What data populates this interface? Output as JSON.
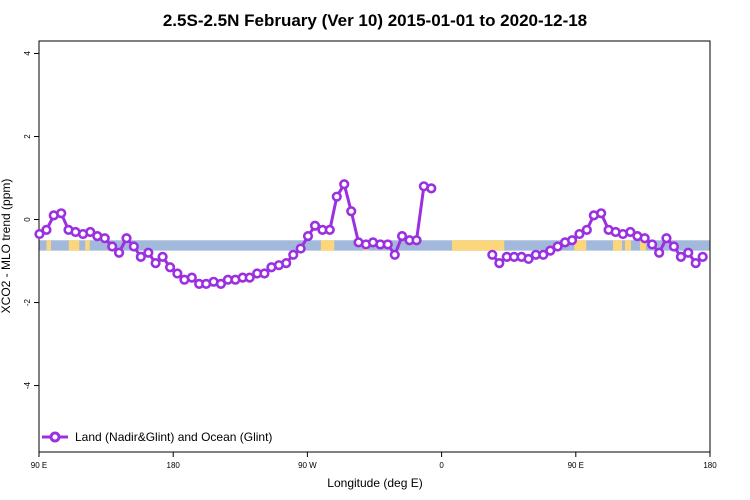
{
  "chart_data": {
    "type": "line",
    "title": "2.5S-2.5N February (Ver 10)   2015-01-01 to 2020-12-18",
    "xlabel": "Longitude (deg E)",
    "ylabel": "XCO2 - MLO trend (ppm)",
    "xlim": [
      90,
      540
    ],
    "ylim": [
      -5.6,
      4.3
    ],
    "x_ticks": [
      {
        "value": 90,
        "label": "90 E"
      },
      {
        "value": 180,
        "label": "180"
      },
      {
        "value": 270,
        "label": "90 W"
      },
      {
        "value": 360,
        "label": "0"
      },
      {
        "value": 450,
        "label": "90 E"
      },
      {
        "value": 540,
        "label": "180"
      }
    ],
    "y_ticks": [
      {
        "value": -4,
        "label": "-4"
      },
      {
        "value": -2,
        "label": "-2"
      },
      {
        "value": 0,
        "label": "0"
      },
      {
        "value": 2,
        "label": "2"
      },
      {
        "value": 4,
        "label": "4"
      }
    ],
    "legend": {
      "position": "bottom-left",
      "label": "Land (Nadir&Glint) and Ocean (Glint)"
    },
    "colors": {
      "series": "#9b30e0",
      "ocean": "#a3b9dc",
      "land": "#fcd67a"
    },
    "surface_band": {
      "y_range": [
        -0.75,
        -0.5
      ],
      "land_segments": [
        [
          95,
          98
        ],
        [
          110,
          117
        ],
        [
          121,
          124
        ],
        [
          279,
          288
        ],
        [
          308,
          311
        ],
        [
          367,
          402
        ],
        [
          449,
          457
        ],
        [
          475,
          481
        ],
        [
          483,
          487
        ],
        [
          493,
          497
        ]
      ]
    },
    "series": [
      {
        "name": "Land (Nadir&Glint) and Ocean (Glint)",
        "segments": [
          [
            [
              90.3,
              -0.35
            ],
            [
              95.0,
              -0.25
            ],
            [
              99.9,
              0.1
            ],
            [
              104.9,
              0.15
            ],
            [
              109.8,
              -0.25
            ],
            [
              114.5,
              -0.3
            ],
            [
              119.5,
              -0.35
            ],
            [
              124.4,
              -0.3
            ],
            [
              129.1,
              -0.4
            ],
            [
              134.1,
              -0.45
            ],
            [
              139.1,
              -0.65
            ],
            [
              143.7,
              -0.8
            ],
            [
              148.7,
              -0.45
            ],
            [
              153.6,
              -0.65
            ],
            [
              158.3,
              -0.9
            ],
            [
              163.3,
              -0.8
            ],
            [
              168.2,
              -1.05
            ],
            [
              172.9,
              -0.9
            ],
            [
              177.9,
              -1.15
            ],
            [
              182.8,
              -1.3
            ],
            [
              187.5,
              -1.45
            ],
            [
              192.5,
              -1.4
            ],
            [
              197.4,
              -1.55
            ],
            [
              202.1,
              -1.55
            ],
            [
              207.1,
              -1.5
            ],
            [
              212.0,
              -1.55
            ],
            [
              216.7,
              -1.45
            ],
            [
              221.7,
              -1.45
            ],
            [
              226.6,
              -1.4
            ],
            [
              231.3,
              -1.4
            ],
            [
              236.3,
              -1.3
            ],
            [
              241.2,
              -1.3
            ],
            [
              245.9,
              -1.15
            ],
            [
              250.9,
              -1.1
            ],
            [
              255.8,
              -1.05
            ],
            [
              260.5,
              -0.85
            ],
            [
              265.5,
              -0.7
            ],
            [
              270.4,
              -0.4
            ],
            [
              275.1,
              -0.15
            ],
            [
              280.1,
              -0.25
            ],
            [
              285.0,
              -0.25
            ],
            [
              289.7,
              0.55
            ],
            [
              294.7,
              0.85
            ],
            [
              299.4,
              0.2
            ],
            [
              304.3,
              -0.55
            ],
            [
              309.3,
              -0.6
            ],
            [
              314.0,
              -0.55
            ],
            [
              318.9,
              -0.6
            ],
            [
              323.9,
              -0.6
            ],
            [
              328.6,
              -0.85
            ],
            [
              333.5,
              -0.4
            ],
            [
              338.5,
              -0.5
            ],
            [
              343.2,
              -0.5
            ],
            [
              348.1,
              0.8
            ],
            [
              353.1,
              0.75
            ]
          ],
          [
            [
              394.0,
              -0.85
            ],
            [
              398.7,
              -1.05
            ],
            [
              403.7,
              -0.9
            ],
            [
              408.6,
              -0.9
            ],
            [
              413.6,
              -0.9
            ],
            [
              418.3,
              -0.95
            ],
            [
              423.2,
              -0.85
            ],
            [
              428.2,
              -0.85
            ],
            [
              432.9,
              -0.75
            ],
            [
              437.8,
              -0.65
            ],
            [
              442.8,
              -0.55
            ],
            [
              447.5,
              -0.5
            ],
            [
              452.4,
              -0.35
            ],
            [
              457.4,
              -0.25
            ],
            [
              462.1,
              0.1
            ],
            [
              467.0,
              0.15
            ],
            [
              472.0,
              -0.25
            ],
            [
              476.7,
              -0.3
            ],
            [
              481.6,
              -0.35
            ],
            [
              486.6,
              -0.3
            ],
            [
              491.3,
              -0.4
            ],
            [
              496.2,
              -0.45
            ],
            [
              501.2,
              -0.6
            ],
            [
              505.9,
              -0.8
            ],
            [
              510.8,
              -0.45
            ],
            [
              515.8,
              -0.65
            ],
            [
              520.5,
              -0.9
            ],
            [
              525.4,
              -0.8
            ],
            [
              530.4,
              -1.05
            ],
            [
              535.1,
              -0.9
            ]
          ]
        ]
      }
    ]
  }
}
